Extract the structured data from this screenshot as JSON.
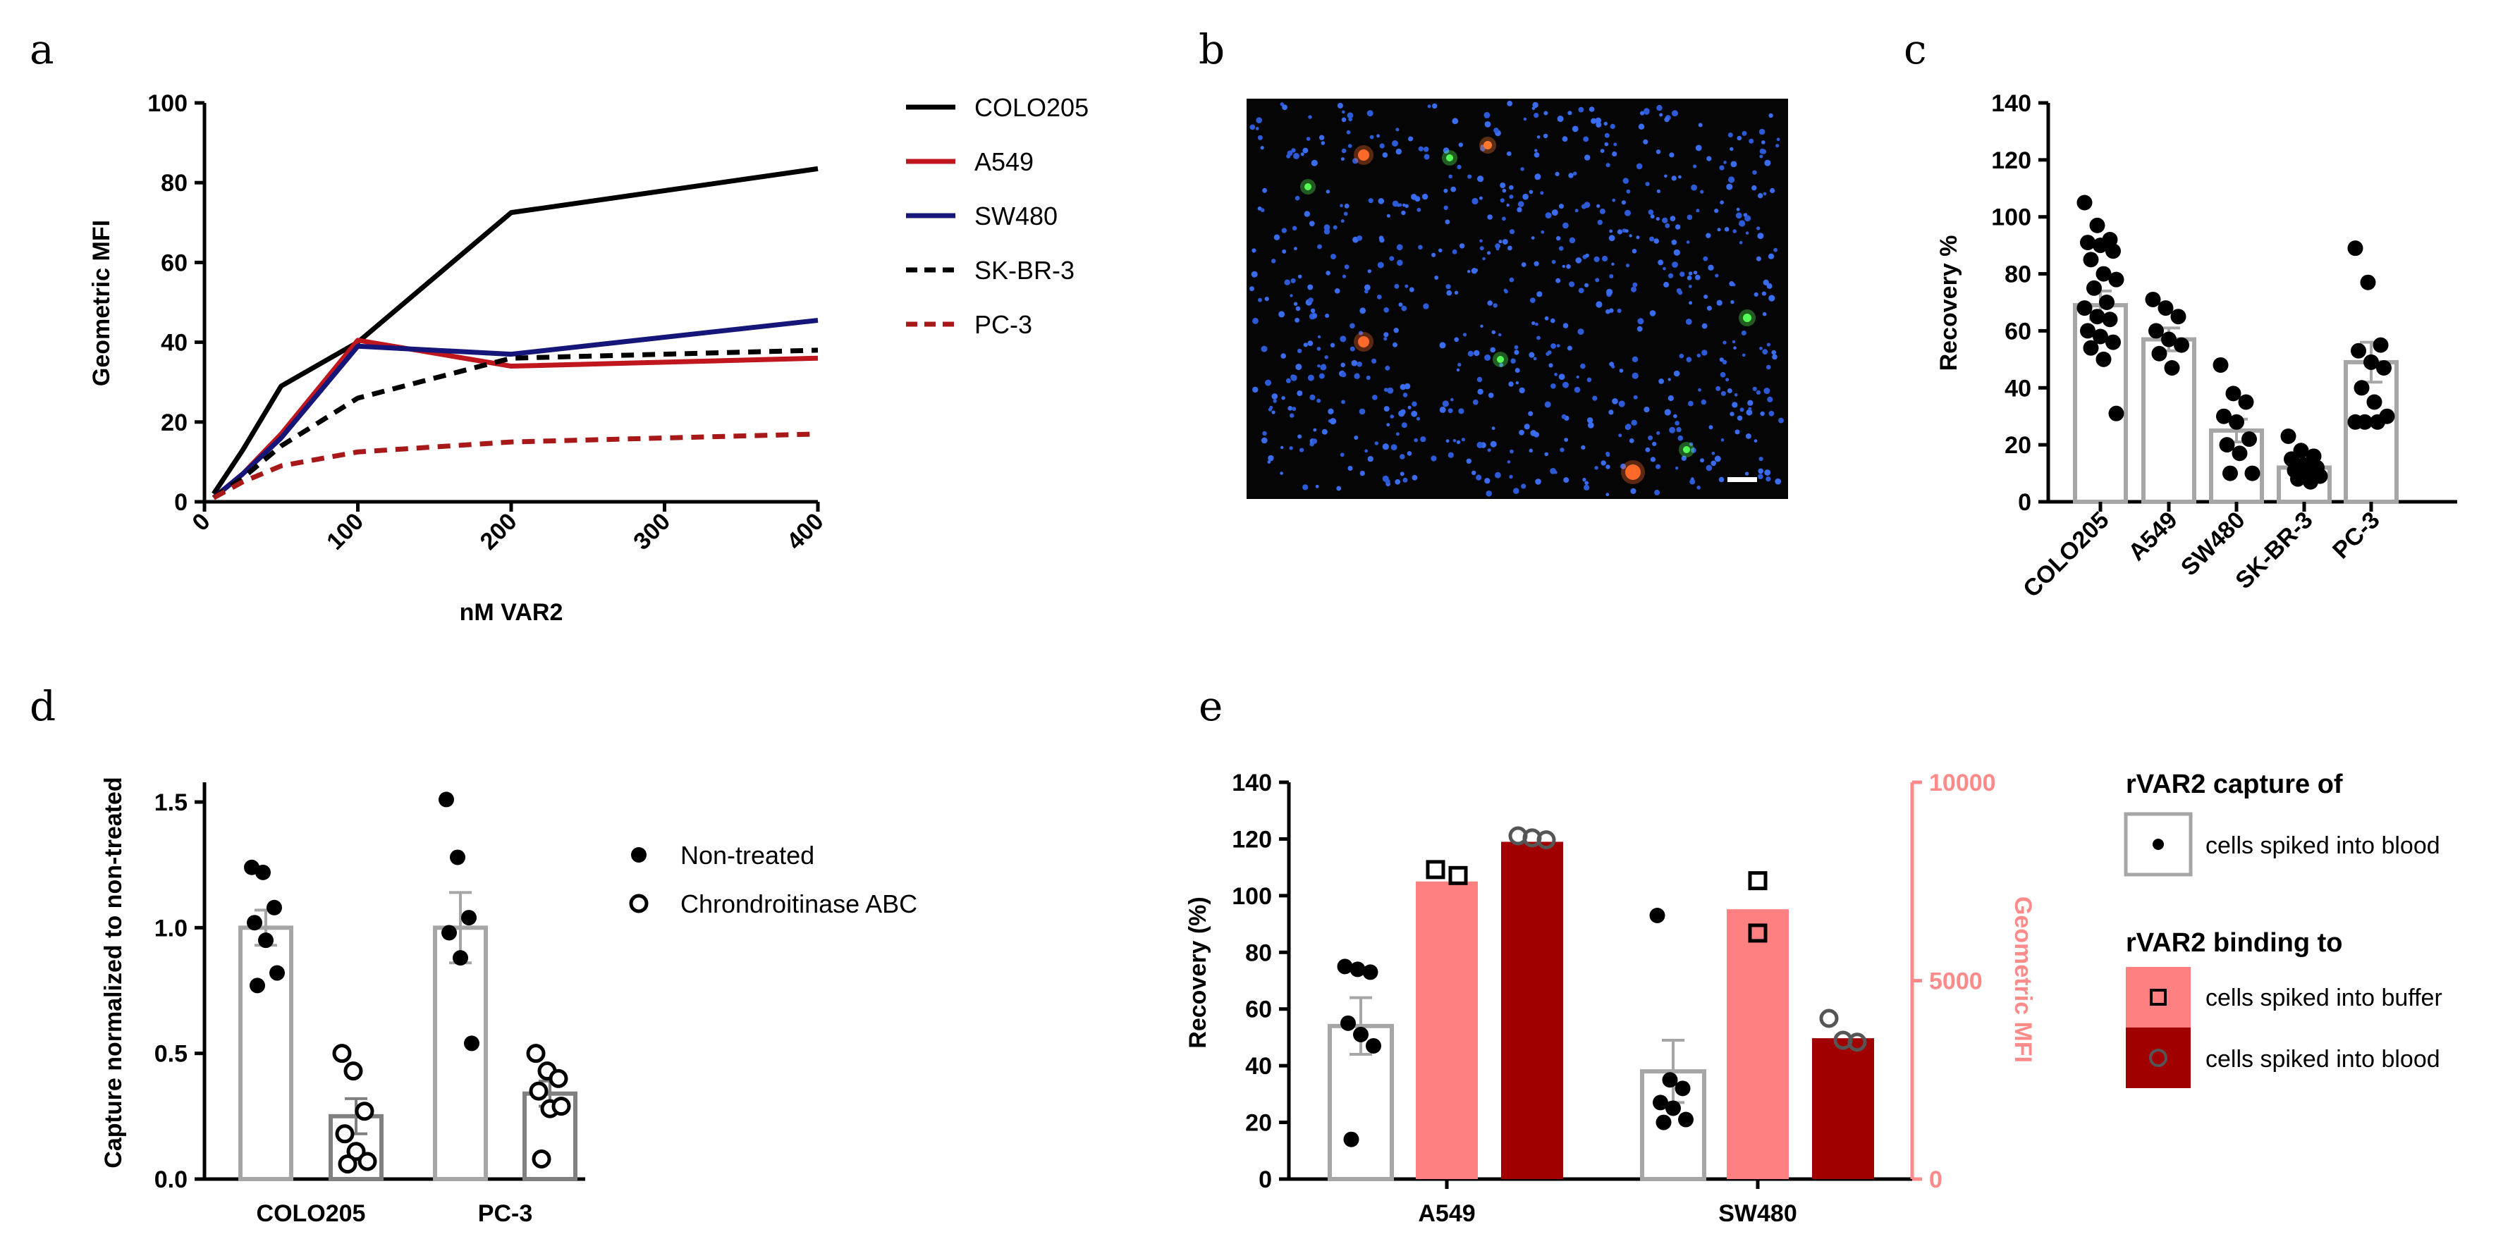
{
  "panel_labels": {
    "a": "a",
    "b": "b",
    "c": "c",
    "d": "d",
    "e": "e"
  },
  "chart_data": [
    {
      "panel": "a",
      "type": "line",
      "xlabel": "nM VAR2",
      "ylabel": "Geometric MFI",
      "xlim": [
        0,
        400
      ],
      "ylim": [
        0,
        100
      ],
      "xticks": [
        "0",
        "100",
        "200",
        "300",
        "400"
      ],
      "yticks": [
        "0",
        "20",
        "40",
        "60",
        "80",
        "100"
      ],
      "series": [
        {
          "name": "COLO205",
          "color": "#000000",
          "dash": false,
          "x": [
            6,
            25,
            50,
            100,
            200,
            400
          ],
          "y": [
            2,
            13,
            29,
            40,
            72.5,
            83.5
          ]
        },
        {
          "name": "A549",
          "color": "#c0161e",
          "dash": false,
          "x": [
            6,
            25,
            50,
            100,
            200,
            400
          ],
          "y": [
            1,
            7,
            17,
            40.5,
            34,
            36
          ]
        },
        {
          "name": "SW480",
          "color": "#16167a",
          "dash": false,
          "x": [
            6,
            25,
            50,
            100,
            200,
            400
          ],
          "y": [
            1,
            7,
            16,
            39,
            37,
            45.5
          ]
        },
        {
          "name": "SK-BR-3",
          "color": "#000000",
          "dash": true,
          "x": [
            6,
            25,
            50,
            100,
            200,
            400
          ],
          "y": [
            1,
            6,
            14,
            26,
            36,
            38
          ]
        },
        {
          "name": "PC-3",
          "color": "#a81818",
          "dash": true,
          "x": [
            6,
            25,
            50,
            100,
            200,
            400
          ],
          "y": [
            1,
            5,
            9,
            12.5,
            15,
            17
          ]
        }
      ]
    },
    {
      "panel": "c",
      "type": "bar",
      "ylabel": "Recovery %",
      "ylim": [
        0,
        140
      ],
      "yticks": [
        "0",
        "20",
        "40",
        "60",
        "80",
        "100",
        "120",
        "140"
      ],
      "categories": [
        "COLO205",
        "A549",
        "SW480",
        "SK-BR-3",
        "PC-3"
      ],
      "values": [
        69,
        57,
        25,
        12,
        49
      ],
      "errors": [
        5,
        4,
        4,
        3,
        7
      ],
      "points": [
        [
          105,
          97,
          92,
          91,
          90,
          88,
          85,
          80,
          78,
          75,
          70,
          68,
          65,
          64,
          60,
          58,
          56,
          54,
          50,
          31
        ],
        [
          71,
          68,
          65,
          60,
          57,
          55,
          52,
          47
        ],
        [
          48,
          38,
          35,
          30,
          28,
          22,
          20,
          17,
          10,
          10
        ],
        [
          23,
          18,
          16,
          15,
          13,
          12,
          11,
          10,
          9,
          8,
          7
        ],
        [
          89,
          77,
          55,
          53,
          49,
          47,
          40,
          35,
          30,
          28,
          28,
          28
        ]
      ]
    },
    {
      "panel": "d",
      "type": "bar",
      "ylabel": "Capture normalized to non-treated",
      "ylim": [
        0,
        1.5
      ],
      "yticks": [
        "0.0",
        "0.5",
        "1.0",
        "1.5"
      ],
      "categories": [
        "COLO205",
        "PC-3"
      ],
      "series": [
        {
          "name": "Non-treated",
          "values": [
            1.0,
            1.0
          ],
          "errors": [
            0.07,
            0.14
          ],
          "points": [
            [
              1.24,
              1.22,
              1.08,
              1.02,
              0.95,
              0.82,
              0.77
            ],
            [
              1.51,
              1.28,
              1.04,
              0.98,
              0.88,
              0.54
            ]
          ]
        },
        {
          "name": "Chrondroitinase ABC",
          "values": [
            0.25,
            0.34
          ],
          "errors": [
            0.07,
            0.05
          ],
          "points": [
            [
              0.5,
              0.43,
              0.27,
              0.18,
              0.11,
              0.07,
              0.06
            ],
            [
              0.5,
              0.43,
              0.4,
              0.35,
              0.28,
              0.29,
              0.08
            ]
          ]
        }
      ]
    },
    {
      "panel": "e",
      "type": "bar",
      "ylabel": "Recovery (%)",
      "ylabel_right": "Geometric MFI",
      "ylim": [
        0,
        140
      ],
      "ylim_right": [
        0,
        10000
      ],
      "yticks": [
        "0",
        "20",
        "40",
        "60",
        "80",
        "100",
        "120",
        "140"
      ],
      "yticks_right": [
        "0",
        "5000",
        "10000"
      ],
      "categories": [
        "A549",
        "SW480"
      ],
      "recovery": {
        "values": [
          54,
          38
        ],
        "errors": [
          10,
          11
        ],
        "points": [
          [
            75,
            74,
            73,
            55,
            51,
            47,
            14
          ],
          [
            93,
            35,
            32,
            27,
            25,
            21,
            20
          ]
        ]
      },
      "mfi_buffer": {
        "values": [
          7500,
          6800
        ],
        "points": [
          [
            7800,
            7650
          ],
          [
            7520,
            6200
          ]
        ]
      },
      "mfi_blood": {
        "values": [
          8500,
          3550
        ],
        "points": [
          [
            8650,
            8600,
            8550
          ],
          [
            4050,
            3500,
            3450
          ]
        ]
      }
    }
  ],
  "legend_a": [
    "COLO205",
    "A549",
    "SW480",
    "SK-BR-3",
    "PC-3"
  ],
  "legend_d": [
    "Non-treated",
    "Chrondroitinase ABC"
  ],
  "legend_e": {
    "title1": "rVAR2 capture of",
    "item1": "cells spiked into blood",
    "title2": "rVAR2 binding to",
    "item2": "cells spiked into buffer",
    "item3": "cells spiked into blood"
  },
  "colors": {
    "gray": "#a6a6a6",
    "buffer": "#ff8080",
    "blood": "#a00000",
    "mfi_axis": "#ff8a8a"
  }
}
